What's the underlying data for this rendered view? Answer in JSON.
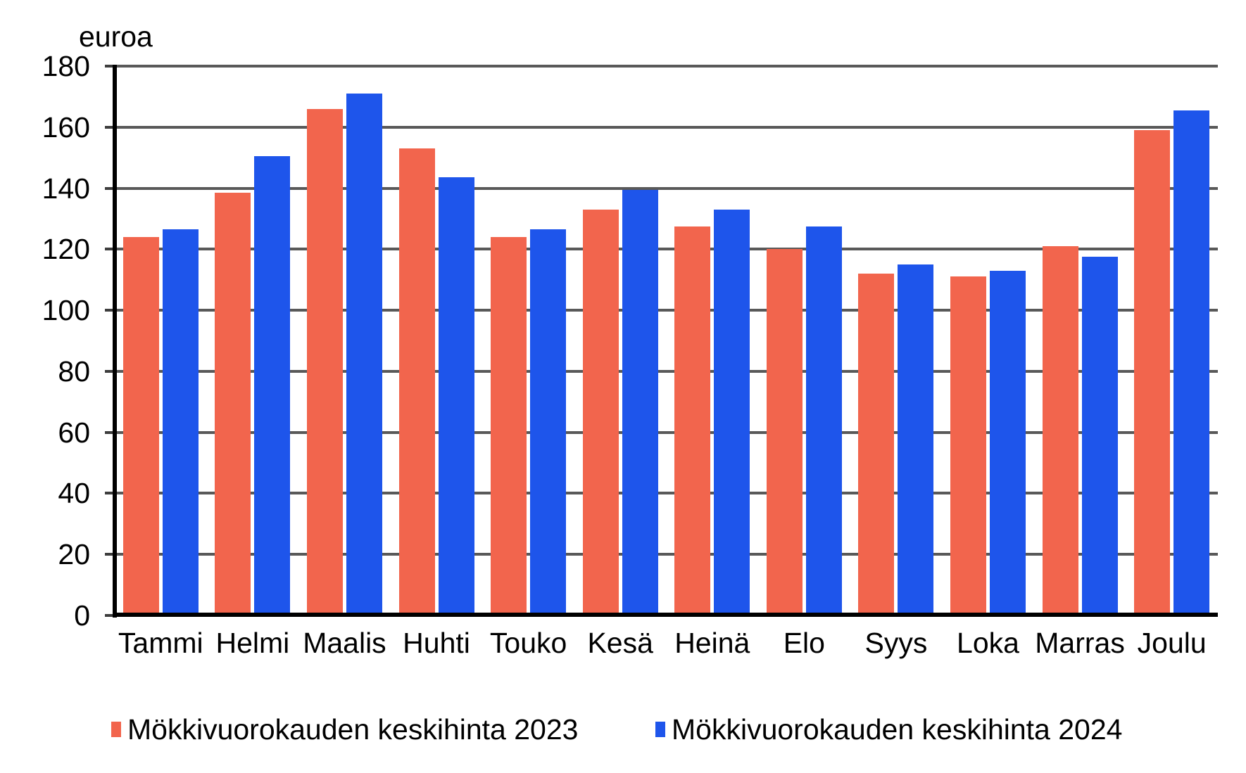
{
  "y_axis_unit": "euroa",
  "chart_data": {
    "type": "bar",
    "title": "",
    "ylabel": "euroa",
    "xlabel": "",
    "ylim": [
      0,
      180
    ],
    "ytick_step": 20,
    "grid": true,
    "legend_position": "bottom",
    "categories": [
      "Tammi",
      "Helmi",
      "Maalis",
      "Huhti",
      "Touko",
      "Kesä",
      "Heinä",
      "Elo",
      "Syys",
      "Loka",
      "Marras",
      "Joulu"
    ],
    "series": [
      {
        "name": "Mökkivuorokauden keskihinta 2023",
        "color": "#F2654D",
        "values": [
          124,
          138.5,
          166,
          153,
          124,
          133,
          127.5,
          120,
          112,
          111,
          121,
          159
        ]
      },
      {
        "name": "Mökkivuorokauden keskihinta 2024",
        "color": "#1E55EB",
        "values": [
          126.5,
          150.5,
          171,
          143.5,
          126.5,
          139.5,
          133,
          127.5,
          115,
          113,
          117.5,
          165.5
        ]
      }
    ]
  },
  "colors": {
    "gridline": "#595959",
    "axis": "#000000",
    "background": "#ffffff",
    "text": "#000000"
  }
}
